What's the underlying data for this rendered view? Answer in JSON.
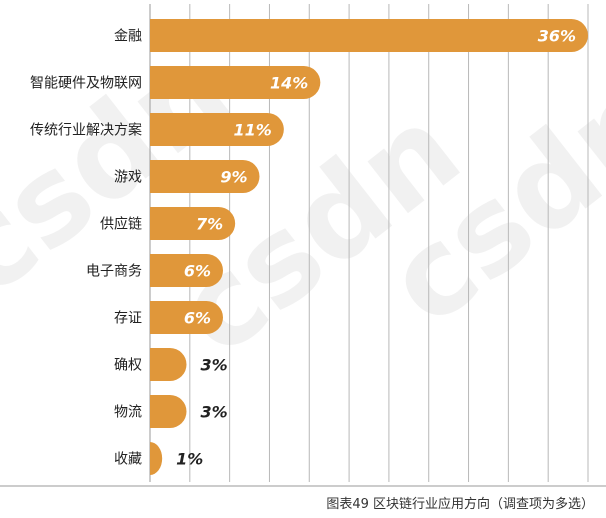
{
  "chart_data": {
    "type": "bar",
    "orientation": "horizontal",
    "categories": [
      "金融",
      "智能硬件及物联网",
      "传统行业解决方案",
      "游戏",
      "供应链",
      "电子商务",
      "存证",
      "确权",
      "物流",
      "收藏"
    ],
    "values": [
      36,
      14,
      11,
      9,
      7,
      6,
      6,
      3,
      3,
      1
    ],
    "value_labels": [
      "36%",
      "14%",
      "11%",
      "9%",
      "7%",
      "6%",
      "6%",
      "3%",
      "3%",
      "1%"
    ],
    "xlim": [
      0,
      36
    ],
    "grid": "vertical",
    "bar_color": "#e0973a",
    "title": "",
    "xlabel": "",
    "ylabel": ""
  },
  "caption": "图表49  区块链行业应用方向（调查项为多选）",
  "watermark": "csdn"
}
